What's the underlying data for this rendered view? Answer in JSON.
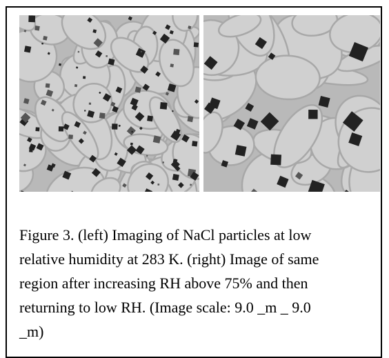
{
  "figure": {
    "caption_lines": [
      "Figure 3. (left) Imaging of NaCl particles at low",
      "relative humidity at 283 K. (right) Image of same",
      "region after increasing RH above 75% and then",
      "returning to low RH. (Image scale: 9.0 _m _ 9.0",
      "_m)"
    ]
  }
}
